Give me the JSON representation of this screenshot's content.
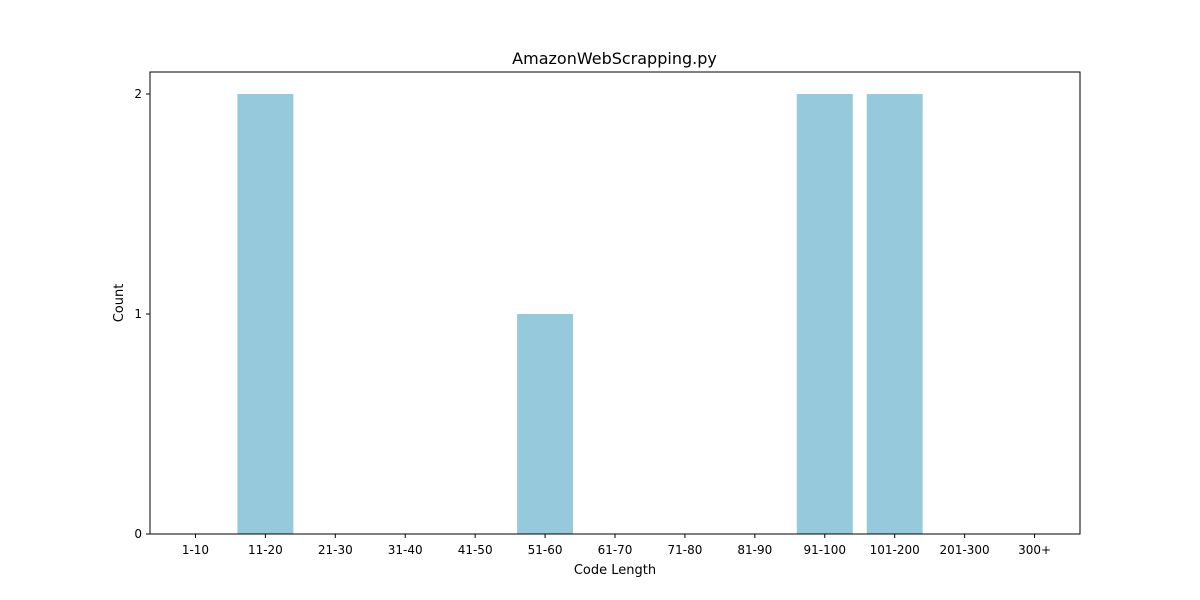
{
  "chart_data": {
    "type": "bar",
    "title": "AmazonWebScrapping.py",
    "xlabel": "Code Length",
    "ylabel": "Count",
    "categories": [
      "1-10",
      "11-20",
      "21-30",
      "31-40",
      "41-50",
      "51-60",
      "61-70",
      "71-80",
      "81-90",
      "91-100",
      "101-200",
      "201-300",
      "300+"
    ],
    "values": [
      0,
      2,
      0,
      0,
      0,
      1,
      0,
      0,
      0,
      2,
      2,
      0,
      0
    ],
    "ylim": [
      0,
      2.1
    ],
    "yticks": [
      0,
      1,
      2
    ],
    "bar_color": "#96c9dc",
    "grid": false
  }
}
